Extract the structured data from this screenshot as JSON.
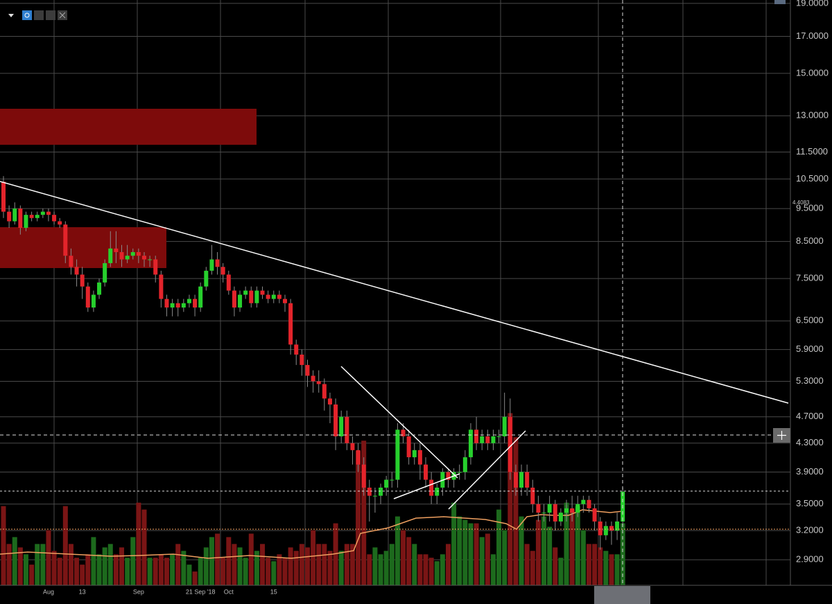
{
  "chart_data": {
    "type": "candlestick",
    "categories": [
      null,
      null,
      null,
      null,
      null,
      null,
      null,
      null,
      "Aug",
      null,
      null,
      null,
      null,
      null,
      "13",
      null,
      null,
      null,
      null,
      null,
      null,
      null,
      null,
      null,
      "Sep",
      null,
      null,
      null,
      null,
      null,
      null,
      null,
      null,
      null,
      null,
      "21 Sep '18",
      null,
      null,
      null,
      null,
      "Oct",
      null,
      null,
      null,
      null,
      null,
      null,
      null,
      "15",
      null,
      null,
      null,
      null,
      null,
      null,
      null,
      null,
      null,
      null,
      null,
      null,
      null,
      null,
      null,
      null,
      null,
      null,
      null,
      null,
      null,
      null,
      null,
      null,
      null,
      null,
      null,
      null,
      null,
      null,
      null,
      null,
      null,
      null,
      null,
      null,
      null,
      null,
      null,
      null,
      null,
      null,
      null,
      null,
      null,
      null,
      null,
      null,
      null,
      null,
      null,
      null,
      null,
      null,
      null,
      null,
      null,
      null,
      null,
      null,
      null,
      null
    ],
    "open": [
      10.4,
      9.4,
      9.1,
      9.5,
      8.9,
      9.3,
      9.2,
      9.3,
      9.4,
      9.3,
      9.1,
      9.0,
      8.1,
      7.8,
      7.6,
      7.3,
      6.8,
      7.1,
      7.4,
      7.9,
      8.3,
      8.2,
      8.0,
      8.1,
      8.2,
      8.1,
      8.0,
      8.0,
      7.6,
      7.0,
      6.8,
      6.9,
      6.8,
      6.9,
      7.0,
      6.8,
      7.3,
      7.7,
      8.0,
      7.8,
      7.6,
      7.2,
      6.8,
      7.1,
      7.2,
      6.9,
      7.2,
      7.1,
      7.0,
      7.1,
      7.0,
      6.9,
      6.0,
      5.8,
      5.6,
      5.4,
      5.3,
      5.25,
      5.0,
      4.9,
      4.4,
      4.7,
      4.3,
      4.2,
      4.0,
      3.7,
      3.6,
      3.6,
      3.7,
      3.8,
      3.8,
      4.5,
      4.4,
      4.1,
      4.2,
      4.0,
      3.8,
      3.6,
      3.7,
      3.9,
      3.8,
      3.9,
      3.9,
      4.1,
      4.5,
      4.3,
      4.4,
      4.3,
      4.4,
      4.4,
      4.7,
      3.9,
      3.7,
      3.9,
      3.7,
      3.5,
      3.4,
      3.4,
      3.5,
      3.3,
      3.4,
      3.45,
      3.4,
      3.5,
      3.55,
      3.45,
      3.3,
      3.15,
      3.25,
      3.2,
      3.3
    ],
    "high": [
      10.6,
      9.6,
      9.7,
      9.6,
      9.4,
      9.4,
      9.4,
      9.5,
      9.5,
      9.4,
      9.2,
      9.1,
      8.3,
      8.0,
      7.8,
      7.4,
      7.2,
      7.5,
      8.0,
      8.8,
      8.8,
      8.4,
      8.4,
      8.3,
      8.3,
      8.2,
      8.1,
      8.1,
      7.7,
      7.1,
      7.0,
      7.0,
      7.0,
      7.1,
      7.1,
      7.4,
      7.8,
      8.4,
      8.2,
      7.9,
      7.7,
      7.3,
      7.2,
      7.3,
      7.3,
      7.3,
      7.3,
      7.2,
      7.2,
      7.2,
      7.1,
      7.0,
      6.1,
      5.9,
      5.7,
      5.5,
      5.5,
      5.35,
      5.1,
      5.0,
      4.8,
      4.8,
      4.4,
      4.3,
      4.1,
      3.8,
      3.7,
      3.75,
      3.85,
      3.9,
      4.6,
      4.6,
      4.5,
      4.3,
      4.3,
      4.1,
      3.9,
      3.75,
      3.95,
      3.95,
      3.95,
      4.0,
      4.2,
      4.6,
      4.7,
      4.5,
      4.5,
      4.5,
      4.5,
      5.1,
      5.0,
      4.0,
      4.0,
      4.0,
      3.8,
      3.6,
      3.5,
      3.6,
      3.55,
      3.45,
      3.55,
      3.6,
      3.6,
      3.6,
      3.6,
      3.5,
      3.35,
      3.3,
      3.3,
      3.4,
      3.7
    ],
    "low": [
      9.2,
      8.9,
      9.0,
      8.7,
      8.8,
      9.1,
      9.1,
      9.2,
      9.1,
      9.0,
      8.9,
      7.9,
      7.6,
      7.3,
      7.0,
      6.7,
      6.7,
      7.0,
      7.3,
      7.8,
      7.9,
      7.8,
      7.9,
      8.0,
      7.9,
      7.8,
      7.8,
      7.4,
      6.8,
      6.6,
      6.6,
      6.6,
      6.7,
      6.8,
      6.6,
      6.7,
      7.2,
      7.6,
      7.6,
      7.4,
      7.1,
      6.6,
      6.7,
      7.0,
      6.8,
      6.8,
      7.0,
      6.9,
      6.9,
      6.9,
      6.7,
      5.8,
      5.6,
      5.4,
      5.2,
      5.1,
      5.1,
      4.8,
      4.6,
      4.2,
      4.3,
      4.2,
      4.0,
      3.9,
      3.6,
      3.3,
      3.4,
      3.5,
      3.6,
      3.7,
      3.7,
      4.3,
      4.0,
      4.0,
      3.8,
      3.7,
      3.5,
      3.5,
      3.6,
      3.7,
      3.7,
      3.8,
      3.8,
      4.0,
      4.2,
      4.2,
      4.2,
      4.2,
      4.3,
      4.3,
      3.8,
      3.6,
      3.6,
      3.6,
      3.4,
      3.3,
      3.3,
      3.3,
      3.2,
      3.25,
      3.3,
      3.3,
      3.35,
      3.4,
      3.4,
      3.2,
      3.0,
      3.1,
      3.05,
      3.1,
      3.25
    ],
    "close": [
      9.4,
      9.1,
      9.5,
      8.9,
      9.3,
      9.2,
      9.3,
      9.4,
      9.3,
      9.1,
      9.0,
      8.1,
      7.8,
      7.6,
      7.3,
      6.8,
      7.1,
      7.4,
      7.9,
      8.3,
      8.2,
      8.0,
      8.1,
      8.2,
      8.1,
      8.0,
      8.0,
      7.6,
      7.0,
      6.8,
      6.9,
      6.8,
      6.9,
      7.0,
      6.8,
      7.3,
      7.7,
      8.0,
      7.8,
      7.6,
      7.2,
      6.8,
      7.1,
      7.2,
      6.9,
      7.2,
      7.1,
      7.0,
      7.1,
      7.0,
      6.9,
      6.0,
      5.8,
      5.6,
      5.4,
      5.3,
      5.25,
      5.0,
      4.9,
      4.4,
      4.7,
      4.3,
      4.2,
      4.0,
      3.7,
      3.6,
      3.6,
      3.7,
      3.8,
      3.8,
      4.5,
      4.4,
      4.1,
      4.2,
      4.0,
      3.8,
      3.6,
      3.7,
      3.9,
      3.8,
      3.9,
      3.9,
      4.1,
      4.5,
      4.3,
      4.4,
      4.3,
      4.4,
      4.4,
      4.7,
      3.9,
      3.7,
      3.9,
      3.7,
      3.5,
      3.4,
      3.4,
      3.5,
      3.3,
      3.4,
      3.45,
      3.4,
      3.5,
      3.55,
      3.45,
      3.3,
      3.15,
      3.25,
      3.2,
      3.3,
      3.65
    ],
    "volume": [
      115,
      60,
      70,
      55,
      45,
      30,
      60,
      60,
      80,
      50,
      40,
      115,
      60,
      40,
      30,
      45,
      70,
      45,
      55,
      60,
      45,
      55,
      40,
      70,
      120,
      110,
      40,
      40,
      45,
      40,
      45,
      60,
      50,
      30,
      20,
      40,
      55,
      70,
      75,
      40,
      70,
      60,
      55,
      40,
      75,
      50,
      60,
      40,
      35,
      45,
      40,
      55,
      50,
      60,
      55,
      80,
      60,
      60,
      50,
      90,
      50,
      60,
      60,
      195,
      210,
      45,
      55,
      45,
      50,
      60,
      100,
      80,
      70,
      60,
      45,
      45,
      40,
      35,
      45,
      60,
      120,
      100,
      95,
      90,
      90,
      70,
      75,
      45,
      110,
      80,
      250,
      215,
      100,
      60,
      50,
      95,
      100,
      85,
      55,
      40,
      120,
      110,
      115,
      80,
      60,
      60,
      55,
      50,
      45,
      45,
      90
    ],
    "ylim": [
      2.66,
      19.22
    ],
    "log_scale": true,
    "yticks": [
      {
        "value": 19,
        "label": "19.0000"
      },
      {
        "value": 17,
        "label": "17.0000"
      },
      {
        "value": 15,
        "label": "15.0000"
      },
      {
        "value": 13,
        "label": "13.0000"
      },
      {
        "value": 11.5,
        "label": "11.5000"
      },
      {
        "value": 10.5,
        "label": "10.5000"
      },
      {
        "value": 9.5,
        "label": "9.5000"
      },
      {
        "value": 8.5,
        "label": "8.5000"
      },
      {
        "value": 7.5,
        "label": "7.5000"
      },
      {
        "value": 6.5,
        "label": "6.5000"
      },
      {
        "value": 5.9,
        "label": "5.9000"
      },
      {
        "value": 5.3,
        "label": "5.3000"
      },
      {
        "value": 4.7,
        "label": "4.7000"
      },
      {
        "value": 4.3,
        "label": "4.3000"
      },
      {
        "value": 3.9,
        "label": "3.9000"
      },
      {
        "value": 3.5,
        "label": "3.5000"
      },
      {
        "value": 3.2,
        "label": "3.2000"
      },
      {
        "value": 2.9,
        "label": "2.9000"
      }
    ],
    "y2lim": [
      0,
      850
    ],
    "grid": true,
    "colors": {
      "up": "#27d02d",
      "down": "#e3242b",
      "volume_up": "#1d6a1d",
      "volume_down": "#7a1515"
    },
    "price_marker_label": "4.4083"
  }
}
